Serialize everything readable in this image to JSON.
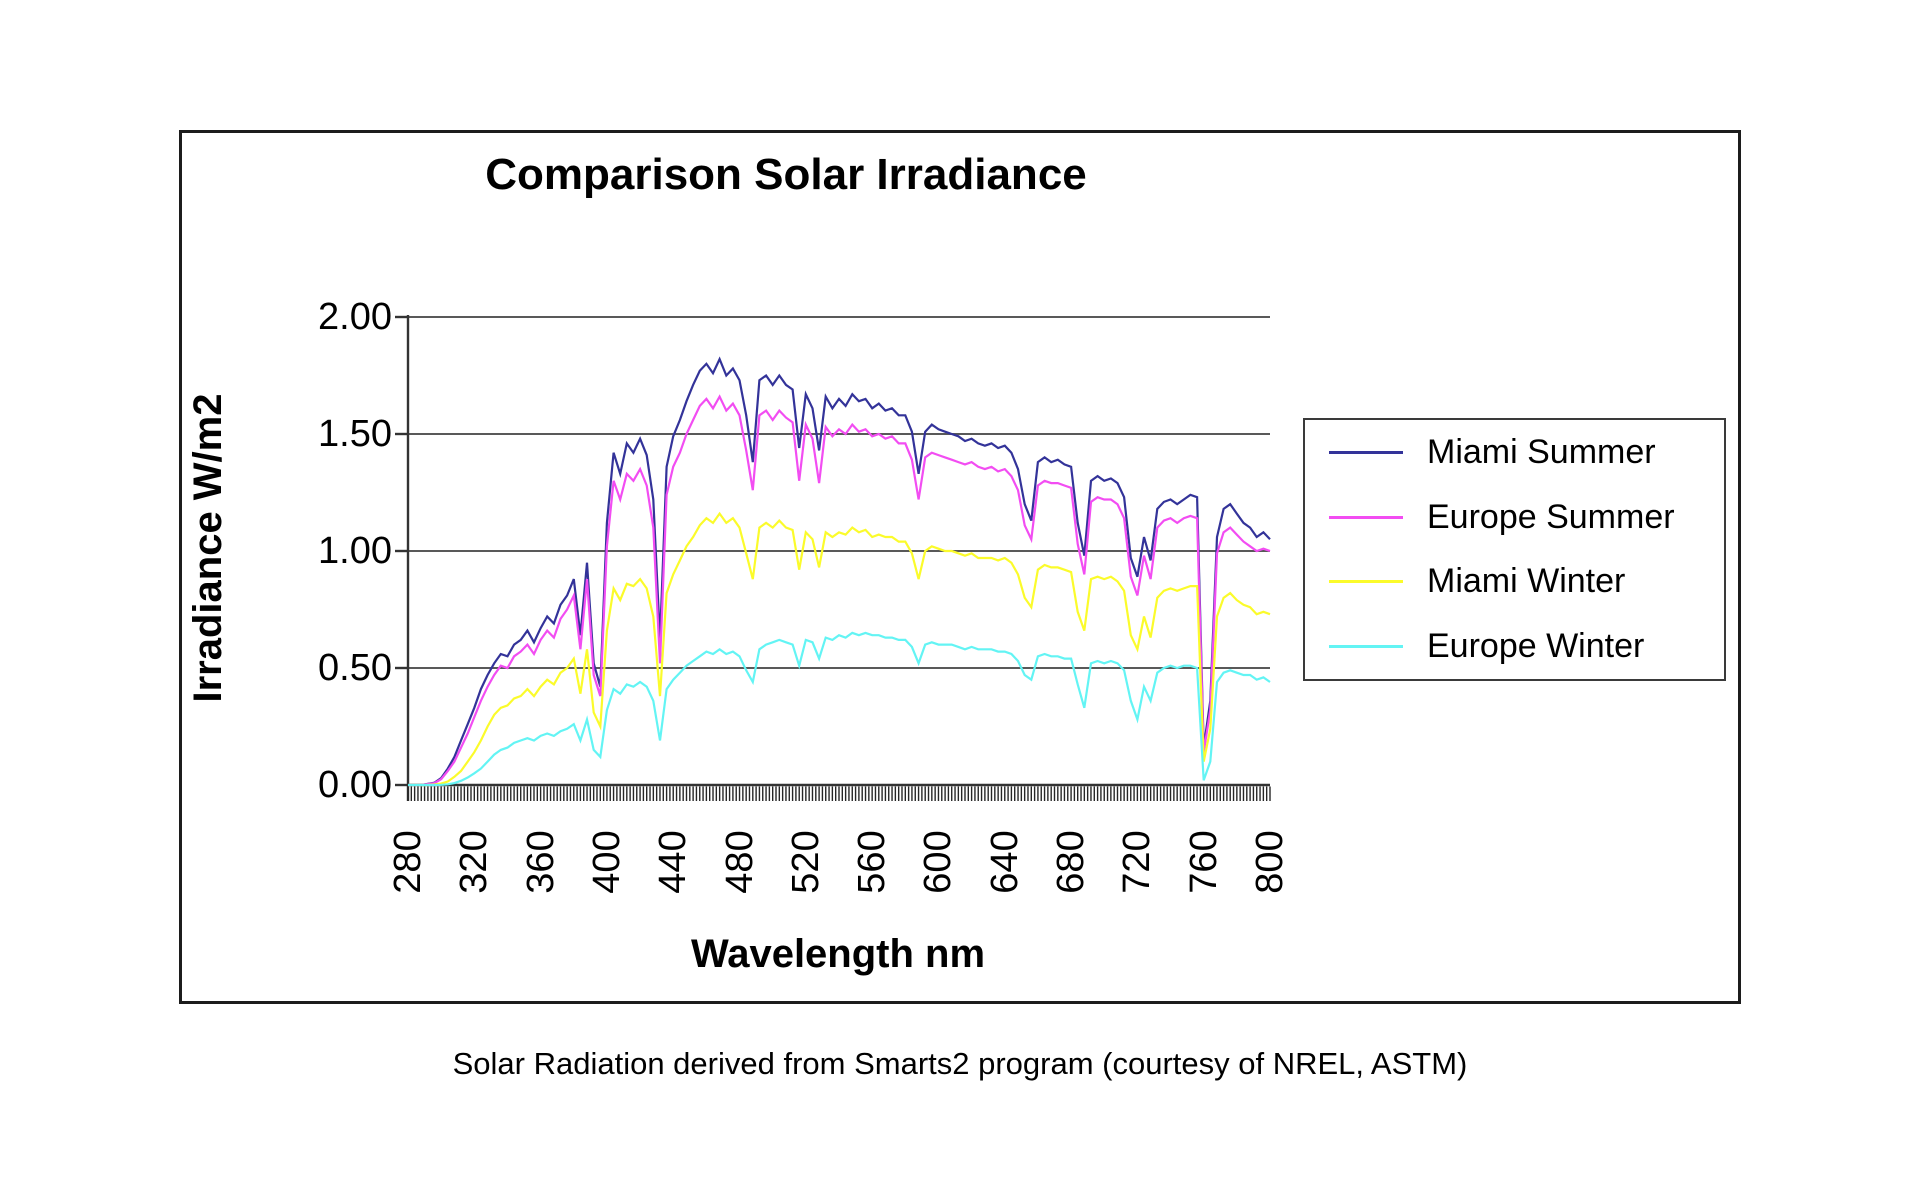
{
  "figure": {
    "title": "Comparison Solar Irradiance",
    "caption": "Solar Radiation derived from Smarts2 program (courtesy of NREL, ASTM)"
  },
  "chart_data": {
    "type": "line",
    "title": "Comparison Solar Irradiance",
    "xlabel": "Wavelength nm",
    "ylabel": "Irradiance W/m2",
    "xlim": [
      280,
      800
    ],
    "ylim": [
      0,
      2
    ],
    "grid": "horizontal",
    "legend_position": "right",
    "x_ticks": [
      280,
      320,
      360,
      400,
      440,
      480,
      520,
      560,
      600,
      640,
      680,
      720,
      760,
      800
    ],
    "y_tick_values": [
      2.0,
      1.5,
      1.0,
      0.5,
      0.0
    ],
    "y_tick_labels": [
      "2.00",
      "1.50",
      "1.00",
      "0.50",
      "0.00"
    ],
    "minor_tick_step_nm": 2,
    "colors": {
      "axis": "#333333",
      "gridline": "#595959",
      "frame": "#1c1c1c",
      "minor_ticks": "#262626"
    },
    "wavelengths": [
      280,
      284,
      288,
      292,
      296,
      300,
      304,
      308,
      312,
      316,
      320,
      324,
      328,
      332,
      336,
      340,
      344,
      348,
      352,
      356,
      360,
      364,
      368,
      372,
      376,
      380,
      384,
      388,
      392,
      396,
      400,
      404,
      408,
      412,
      416,
      420,
      424,
      428,
      432,
      436,
      440,
      444,
      448,
      452,
      456,
      460,
      464,
      468,
      472,
      476,
      480,
      484,
      488,
      492,
      496,
      500,
      504,
      508,
      512,
      516,
      520,
      524,
      528,
      532,
      536,
      540,
      544,
      548,
      552,
      556,
      560,
      564,
      568,
      572,
      576,
      580,
      584,
      588,
      592,
      596,
      600,
      604,
      608,
      612,
      616,
      620,
      624,
      628,
      632,
      636,
      640,
      644,
      648,
      652,
      656,
      660,
      664,
      668,
      672,
      676,
      680,
      684,
      688,
      692,
      696,
      700,
      704,
      708,
      712,
      716,
      720,
      724,
      728,
      732,
      736,
      740,
      744,
      748,
      752,
      756,
      760,
      764,
      768,
      772,
      776,
      780,
      784,
      788,
      792,
      796,
      800
    ],
    "series": [
      {
        "name": "Miami Summer",
        "color": "#333399",
        "values": [
          0,
          0,
          0,
          0.005,
          0.01,
          0.03,
          0.07,
          0.12,
          0.19,
          0.26,
          0.33,
          0.41,
          0.47,
          0.52,
          0.56,
          0.55,
          0.6,
          0.62,
          0.66,
          0.61,
          0.67,
          0.72,
          0.69,
          0.77,
          0.81,
          0.88,
          0.64,
          0.95,
          0.52,
          0.42,
          1.12,
          1.42,
          1.33,
          1.46,
          1.42,
          1.48,
          1.41,
          1.22,
          0.62,
          1.36,
          1.49,
          1.56,
          1.64,
          1.71,
          1.77,
          1.8,
          1.76,
          1.82,
          1.75,
          1.78,
          1.73,
          1.58,
          1.38,
          1.73,
          1.75,
          1.71,
          1.75,
          1.71,
          1.69,
          1.44,
          1.67,
          1.61,
          1.43,
          1.66,
          1.61,
          1.65,
          1.62,
          1.67,
          1.64,
          1.65,
          1.61,
          1.63,
          1.6,
          1.61,
          1.58,
          1.58,
          1.51,
          1.33,
          1.51,
          1.54,
          1.52,
          1.51,
          1.5,
          1.49,
          1.47,
          1.48,
          1.46,
          1.45,
          1.46,
          1.44,
          1.45,
          1.42,
          1.35,
          1.2,
          1.13,
          1.38,
          1.4,
          1.38,
          1.39,
          1.37,
          1.36,
          1.12,
          0.98,
          1.3,
          1.32,
          1.3,
          1.31,
          1.29,
          1.23,
          0.97,
          0.89,
          1.06,
          0.96,
          1.18,
          1.21,
          1.22,
          1.2,
          1.22,
          1.24,
          1.23,
          0.16,
          0.36,
          1.06,
          1.18,
          1.2,
          1.16,
          1.12,
          1.1,
          1.06,
          1.08,
          1.05
        ]
      },
      {
        "name": "Europe Summer",
        "color": "#f24df2",
        "values": [
          0,
          0,
          0,
          0.004,
          0.008,
          0.025,
          0.06,
          0.1,
          0.16,
          0.22,
          0.29,
          0.36,
          0.42,
          0.47,
          0.51,
          0.5,
          0.55,
          0.57,
          0.6,
          0.56,
          0.62,
          0.66,
          0.63,
          0.71,
          0.75,
          0.81,
          0.58,
          0.88,
          0.47,
          0.38,
          1.02,
          1.3,
          1.22,
          1.33,
          1.3,
          1.35,
          1.28,
          1.1,
          0.52,
          1.24,
          1.36,
          1.42,
          1.5,
          1.56,
          1.62,
          1.65,
          1.61,
          1.66,
          1.6,
          1.63,
          1.58,
          1.43,
          1.26,
          1.58,
          1.6,
          1.56,
          1.6,
          1.57,
          1.55,
          1.3,
          1.54,
          1.48,
          1.29,
          1.53,
          1.49,
          1.52,
          1.5,
          1.54,
          1.51,
          1.52,
          1.49,
          1.5,
          1.48,
          1.49,
          1.46,
          1.46,
          1.39,
          1.22,
          1.4,
          1.42,
          1.41,
          1.4,
          1.39,
          1.38,
          1.37,
          1.38,
          1.36,
          1.35,
          1.36,
          1.34,
          1.35,
          1.32,
          1.26,
          1.11,
          1.05,
          1.28,
          1.3,
          1.29,
          1.29,
          1.28,
          1.27,
          1.03,
          0.9,
          1.21,
          1.23,
          1.22,
          1.22,
          1.2,
          1.14,
          0.89,
          0.81,
          0.98,
          0.88,
          1.1,
          1.13,
          1.14,
          1.12,
          1.14,
          1.15,
          1.14,
          0.14,
          0.32,
          0.99,
          1.08,
          1.1,
          1.07,
          1.04,
          1.02,
          1.0,
          1.01,
          1.0
        ]
      },
      {
        "name": "Miami Winter",
        "color": "#fbfb2b",
        "values": [
          0,
          0,
          0,
          0,
          0.002,
          0.006,
          0.015,
          0.035,
          0.06,
          0.1,
          0.14,
          0.19,
          0.25,
          0.3,
          0.33,
          0.34,
          0.37,
          0.38,
          0.41,
          0.38,
          0.42,
          0.45,
          0.43,
          0.48,
          0.5,
          0.54,
          0.39,
          0.58,
          0.31,
          0.25,
          0.66,
          0.84,
          0.79,
          0.86,
          0.85,
          0.88,
          0.84,
          0.72,
          0.38,
          0.82,
          0.9,
          0.96,
          1.02,
          1.06,
          1.11,
          1.14,
          1.12,
          1.16,
          1.12,
          1.14,
          1.1,
          0.99,
          0.88,
          1.1,
          1.12,
          1.1,
          1.13,
          1.1,
          1.09,
          0.92,
          1.08,
          1.05,
          0.93,
          1.08,
          1.06,
          1.08,
          1.07,
          1.1,
          1.08,
          1.09,
          1.06,
          1.07,
          1.06,
          1.06,
          1.04,
          1.04,
          0.99,
          0.88,
          1.0,
          1.02,
          1.01,
          1.0,
          1.0,
          0.99,
          0.98,
          0.99,
          0.97,
          0.97,
          0.97,
          0.96,
          0.97,
          0.95,
          0.9,
          0.8,
          0.76,
          0.92,
          0.94,
          0.93,
          0.93,
          0.92,
          0.91,
          0.74,
          0.66,
          0.88,
          0.89,
          0.88,
          0.89,
          0.87,
          0.83,
          0.64,
          0.58,
          0.72,
          0.63,
          0.8,
          0.83,
          0.84,
          0.83,
          0.84,
          0.85,
          0.85,
          0.1,
          0.24,
          0.72,
          0.8,
          0.82,
          0.79,
          0.77,
          0.76,
          0.73,
          0.74,
          0.73
        ]
      },
      {
        "name": "Europe Winter",
        "color": "#63f4f4",
        "values": [
          0,
          0,
          0,
          0,
          0,
          0.001,
          0.003,
          0.008,
          0.018,
          0.032,
          0.05,
          0.07,
          0.1,
          0.13,
          0.15,
          0.16,
          0.18,
          0.19,
          0.2,
          0.19,
          0.21,
          0.22,
          0.21,
          0.23,
          0.24,
          0.26,
          0.19,
          0.28,
          0.15,
          0.12,
          0.32,
          0.41,
          0.39,
          0.43,
          0.42,
          0.44,
          0.42,
          0.36,
          0.19,
          0.41,
          0.45,
          0.48,
          0.51,
          0.53,
          0.55,
          0.57,
          0.56,
          0.58,
          0.56,
          0.57,
          0.55,
          0.49,
          0.44,
          0.58,
          0.6,
          0.61,
          0.62,
          0.61,
          0.6,
          0.51,
          0.62,
          0.61,
          0.54,
          0.63,
          0.62,
          0.64,
          0.63,
          0.65,
          0.64,
          0.65,
          0.64,
          0.64,
          0.63,
          0.63,
          0.62,
          0.62,
          0.59,
          0.52,
          0.6,
          0.61,
          0.6,
          0.6,
          0.6,
          0.59,
          0.58,
          0.59,
          0.58,
          0.58,
          0.58,
          0.57,
          0.57,
          0.56,
          0.53,
          0.47,
          0.45,
          0.55,
          0.56,
          0.55,
          0.55,
          0.54,
          0.54,
          0.43,
          0.33,
          0.52,
          0.53,
          0.52,
          0.53,
          0.52,
          0.49,
          0.36,
          0.28,
          0.42,
          0.36,
          0.48,
          0.5,
          0.51,
          0.5,
          0.51,
          0.51,
          0.5,
          0.02,
          0.1,
          0.44,
          0.48,
          0.49,
          0.48,
          0.47,
          0.47,
          0.45,
          0.46,
          0.44
        ]
      }
    ]
  }
}
